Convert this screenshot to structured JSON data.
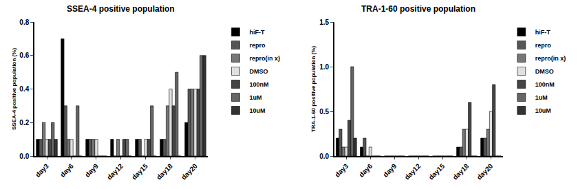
{
  "chart_data": [
    {
      "type": "bar",
      "title": "SSEA-4 positive population",
      "y_label": "SSEA-4 positive population (%)",
      "categories": [
        "day3",
        "day6",
        "day9",
        "day12",
        "day15",
        "day18",
        "day20"
      ],
      "ylim": [
        0,
        0.8
      ],
      "yticks": [
        {
          "value": 0,
          "label": "0.0"
        },
        0.2,
        0.4,
        0.6,
        0.8
      ],
      "legend": "right",
      "series": [
        {
          "name": "hiF-T",
          "color": "#000000",
          "values": [
            0.1,
            0.7,
            0.1,
            0.1,
            0.1,
            0.1,
            0.2
          ]
        },
        {
          "name": "repro",
          "color": "#555555",
          "values": [
            0.1,
            0.3,
            0.1,
            0,
            0.1,
            0.1,
            0.4
          ]
        },
        {
          "name": "repro(in x)",
          "color": "#777777",
          "values": [
            0.2,
            0.1,
            0.1,
            0.1,
            0,
            0.3,
            0.4
          ]
        },
        {
          "name": "DMSO",
          "color": "#e0e0e0",
          "values": [
            0.1,
            0.1,
            0.1,
            0,
            0.1,
            0.4,
            0.4
          ]
        },
        {
          "name": "100nM",
          "color": "#444444",
          "values": [
            0.1,
            0,
            0,
            0.1,
            0.1,
            0.3,
            0.4
          ]
        },
        {
          "name": "1uM",
          "color": "#666666",
          "values": [
            0.2,
            0.3,
            0,
            0.1,
            0.3,
            0.5,
            0.6
          ]
        },
        {
          "name": "10uM",
          "color": "#333333",
          "values": [
            0.1,
            0,
            0,
            0,
            0,
            0,
            0.6
          ]
        }
      ]
    },
    {
      "type": "bar",
      "title": "TRA-1-60 positive population",
      "y_label": "TRA-1-60 positive population (%)",
      "categories": [
        "day3",
        "day6",
        "day9",
        "day12",
        "day15",
        "day18",
        "day20"
      ],
      "ylim": [
        0,
        1.5
      ],
      "yticks": [
        {
          "value": 0,
          "label": "0.0"
        },
        0.5,
        {
          "value": 1,
          "label": "1.0"
        },
        1.5
      ],
      "legend": "right",
      "series": [
        {
          "name": "hiF-T",
          "color": "#000000",
          "values": [
            0.2,
            0.1,
            0,
            0,
            0,
            0.1,
            0.2
          ]
        },
        {
          "name": "repro",
          "color": "#555555",
          "values": [
            0.3,
            0.2,
            0,
            0,
            0,
            0.1,
            0.2
          ]
        },
        {
          "name": "repro(in x)",
          "color": "#777777",
          "values": [
            0.1,
            0,
            0,
            0,
            0,
            0.3,
            0.3
          ]
        },
        {
          "name": "DMSO",
          "color": "#e0e0e0",
          "values": [
            0.1,
            0.1,
            0,
            0,
            0,
            0.3,
            0.5
          ]
        },
        {
          "name": "100nM",
          "color": "#444444",
          "values": [
            0.4,
            0,
            0,
            0,
            0,
            0.6,
            0.8
          ]
        },
        {
          "name": "1uM",
          "color": "#666666",
          "values": [
            1.0,
            0,
            0,
            0,
            0,
            0,
            0
          ]
        },
        {
          "name": "10uM",
          "color": "#333333",
          "values": [
            0.2,
            0,
            0,
            0,
            0,
            0,
            0
          ]
        }
      ]
    }
  ]
}
